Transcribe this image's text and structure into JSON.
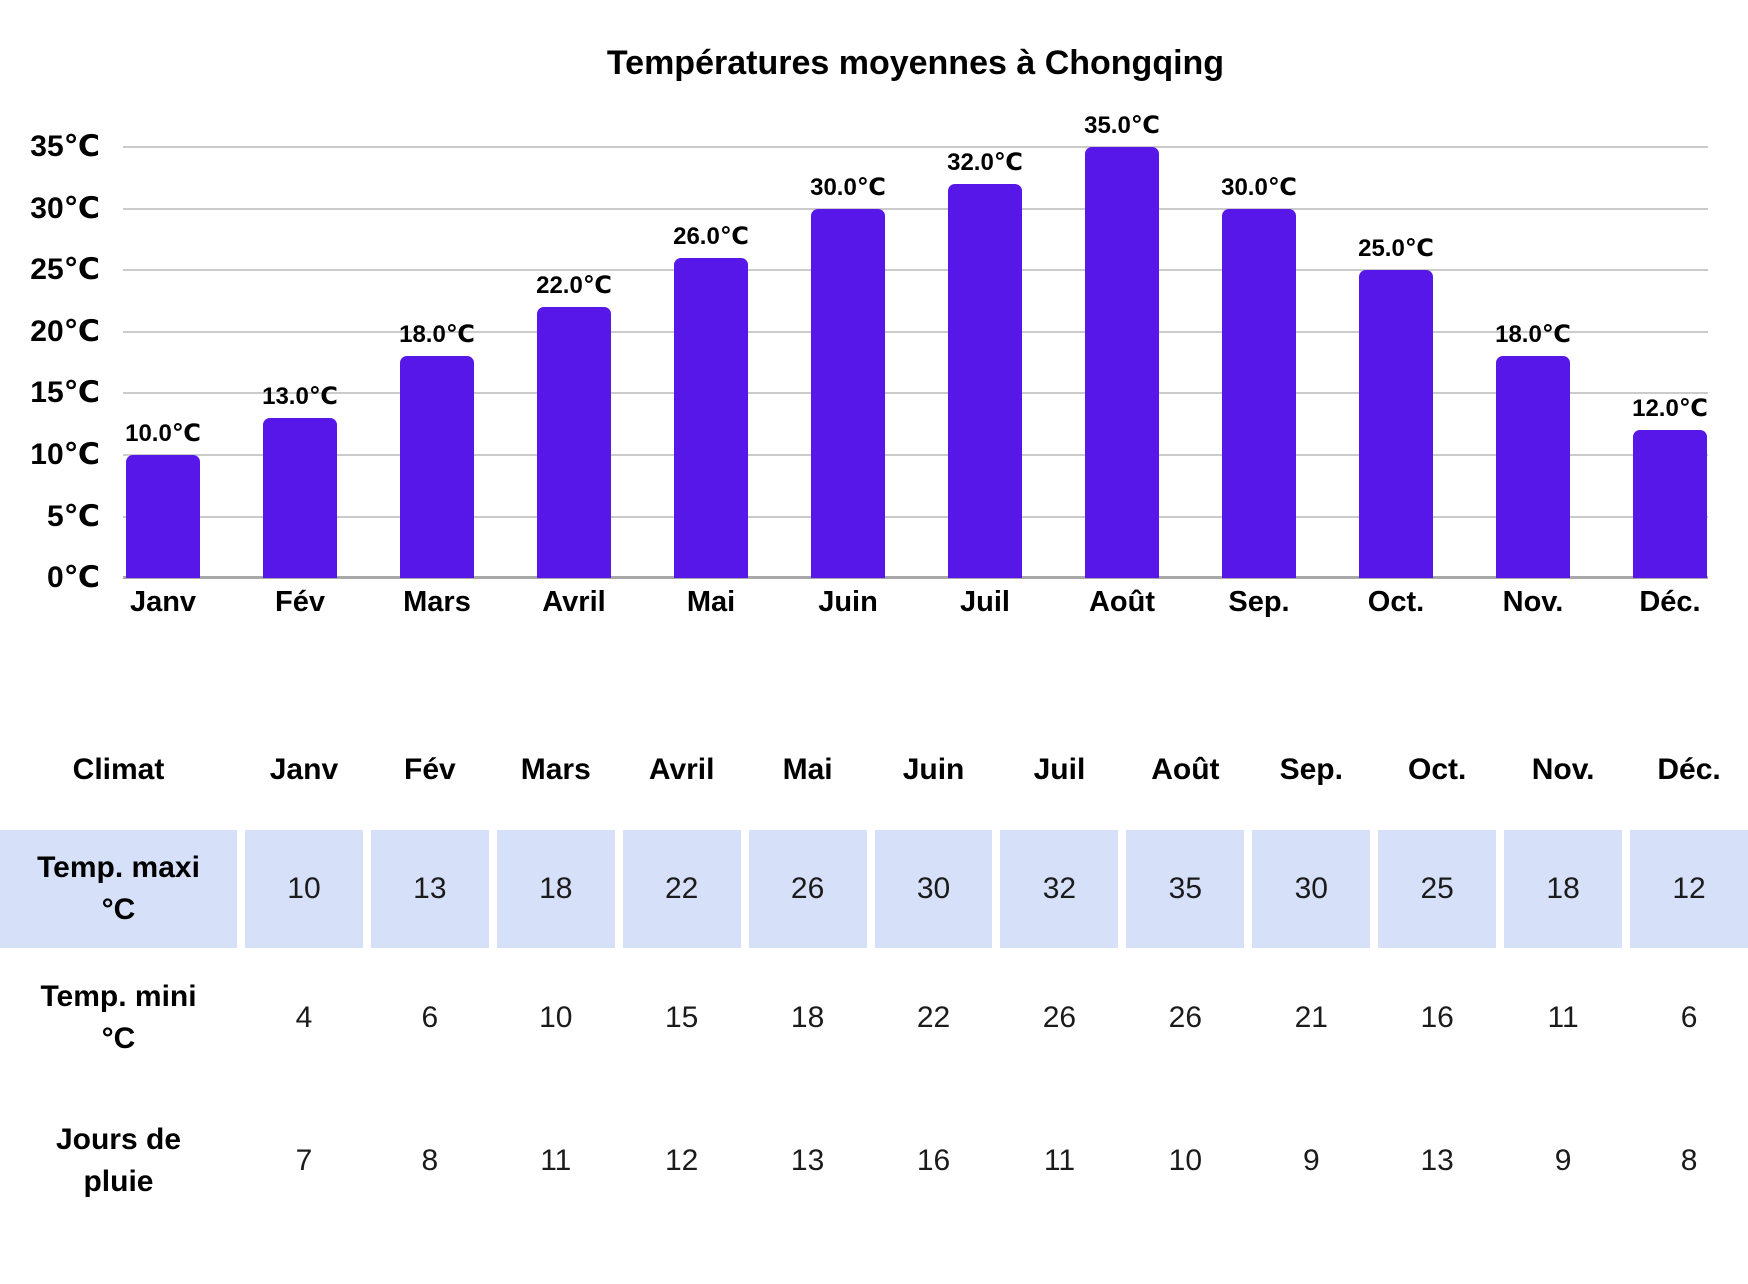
{
  "chart_data": {
    "type": "bar",
    "title": "Températures moyennes à Chongqing",
    "categories": [
      "Janv",
      "Fév",
      "Mars",
      "Avril",
      "Mai",
      "Juin",
      "Juil",
      "Août",
      "Sep.",
      "Oct.",
      "Nov.",
      "Déc."
    ],
    "values": [
      10,
      13,
      18,
      22,
      26,
      30,
      32,
      35,
      30,
      25,
      18,
      12
    ],
    "bar_labels": [
      "10.0℃",
      "13.0℃",
      "18.0℃",
      "22.0℃",
      "26.0℃",
      "30.0℃",
      "32.0℃",
      "35.0℃",
      "30.0℃",
      "25.0℃",
      "18.0℃",
      "12.0℃"
    ],
    "y_tick_labels": [
      "0℃",
      "5℃",
      "10℃",
      "15℃",
      "20℃",
      "25℃",
      "30℃",
      "35℃"
    ],
    "y_tick_values": [
      0,
      5,
      10,
      15,
      20,
      25,
      30,
      35
    ],
    "ylim": [
      0,
      35
    ],
    "xlabel": "",
    "ylabel": "",
    "grid": true,
    "legend": "none",
    "bar_color": "#5617e8",
    "gridline_color": "#cbcbcb",
    "axisline_color": "#a8a8a8"
  },
  "table": {
    "corner_label": "Climat",
    "columns": [
      "Janv",
      "Fév",
      "Mars",
      "Avril",
      "Mai",
      "Juin",
      "Juil",
      "Août",
      "Sep.",
      "Oct.",
      "Nov.",
      "Déc."
    ],
    "rows": [
      {
        "id": "temp-maxi",
        "label": "Temp. maxi\n°C",
        "values": [
          10,
          13,
          18,
          22,
          26,
          30,
          32,
          35,
          30,
          25,
          18,
          12
        ],
        "highlighted": true
      },
      {
        "id": "temp-mini",
        "label": "Temp. mini\n°C",
        "values": [
          4,
          6,
          10,
          15,
          18,
          22,
          26,
          26,
          21,
          16,
          11,
          6
        ],
        "highlighted": false
      },
      {
        "id": "jours-de-pluie",
        "label": "Jours de\npluie",
        "values": [
          7,
          8,
          11,
          12,
          13,
          16,
          11,
          10,
          9,
          13,
          9,
          8
        ],
        "highlighted": false
      }
    ],
    "highlight_color": "#d6e0f8"
  }
}
